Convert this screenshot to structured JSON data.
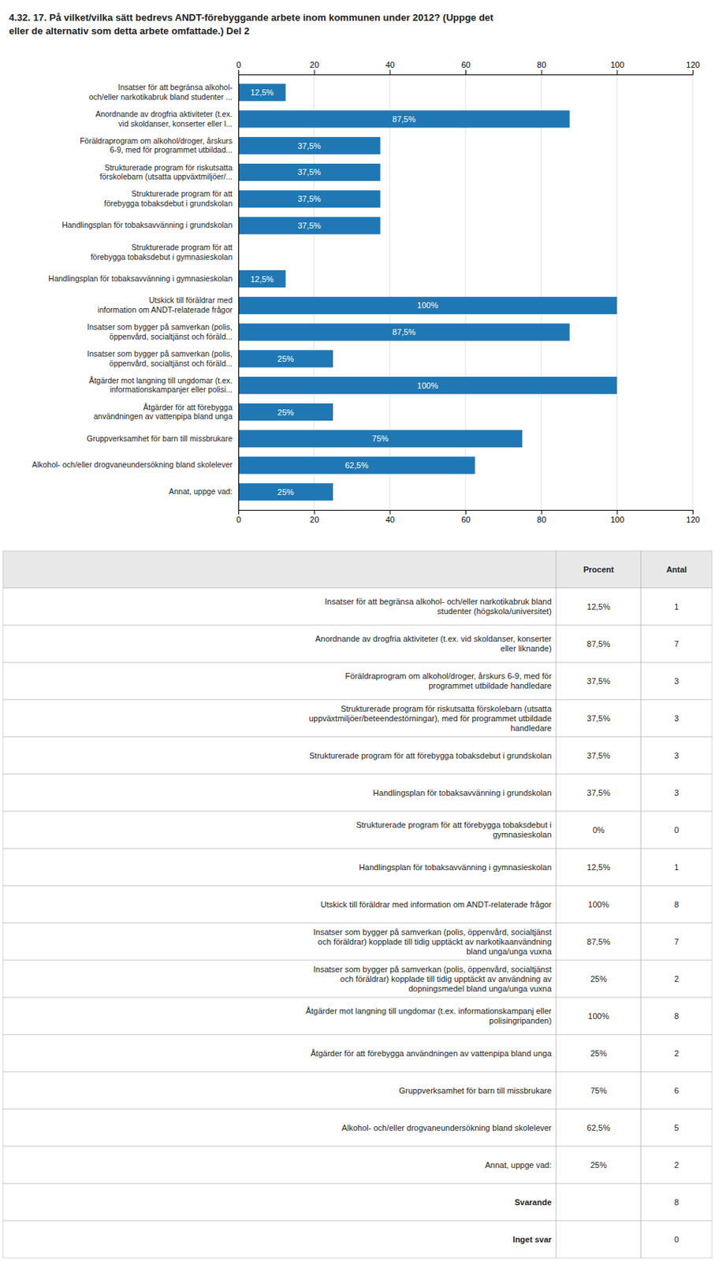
{
  "chart_data": {
    "type": "bar",
    "orientation": "horizontal",
    "title": "4.32. 17. På vilket/vilka sätt bedrevs ANDT-förebyggande arbete inom kommunen under 2012? (Uppge det\neller de alternativ som detta arbete omfattade.) Del 2",
    "categories": [
      "Insatser för att begränsa alkohol-\noch/eller narkotikabruk bland studenter ...",
      "Anordnande av drogfria aktiviteter (t.ex.\nvid skoldanser, konserter eller l...",
      "Föräldraprogram om alkohol/droger, årskurs\n6-9, med för programmet utbildad...",
      "Strukturerade program för riskutsatta\nförskolebarn (utsatta uppväxtmiljöer/...",
      "Strukturerade program för att\nförebygga tobaksdebut i grundskolan",
      "Handlingsplan för tobaksavvänning i grundskolan",
      "Strukturerade program för att\nförebygga tobaksdebut i gymnasieskolan",
      "Handlingsplan för tobaksavvänning i gymnasieskolan",
      "Utskick till föräldrar med\ninformation om ANDT-relaterade frågor",
      "Insatser som bygger på samverkan (polis,\nöppenvård, socialtjänst och föräld...",
      "Insatser som bygger på samverkan (polis,\nöppenvård, socialtjänst och föräld...",
      "Åtgärder mot langning till ungdomar (t.ex.\ninformationskampanjer eller polisi...",
      "Åtgärder för att förebygga\nanvändningen av vattenpipa bland unga",
      "Gruppverksamhet för barn till missbrukare",
      "Alkohol- och/eller drogvaneundersökning bland skolelever",
      "Annat, uppge vad:"
    ],
    "values": [
      12.5,
      87.5,
      37.5,
      37.5,
      37.5,
      37.5,
      0.0,
      12.5,
      100.0,
      87.5,
      25.0,
      100.0,
      25.0,
      75.0,
      62.5,
      25.0
    ],
    "value_labels": [
      "12,5%",
      "87,5%",
      "37,5%",
      "37,5%",
      "37,5%",
      "37,5%",
      null,
      "12,5%",
      "100%",
      "87,5%",
      "25%",
      "100%",
      "25%",
      "75%",
      "62,5%",
      "25%"
    ],
    "data_labels": true,
    "xlim": [
      0,
      120
    ],
    "xticks": [
      0,
      20,
      40,
      60,
      80,
      100,
      120
    ],
    "grid": true
  },
  "table": {
    "columns": [
      null,
      "Procent",
      "Antal"
    ],
    "rows": [
      [
        "Insatser för att begränsa alkohol- och/eller narkotikabruk bland\nstudenter (högskola/universitet)",
        "12,5%",
        "1"
      ],
      [
        "Anordnande av drogfria aktiviteter (t.ex. vid skoldanser, konserter\neller liknande)",
        "87,5%",
        "7"
      ],
      [
        "Föräldraprogram om alkohol/droger, årskurs 6-9, med för\nprogrammet utbildade handledare",
        "37,5%",
        "3"
      ],
      [
        "Strukturerade program för riskutsatta förskolebarn (utsatta\nuppväxtmiljöer/beteendestörningar), med för programmet utbildade\nhandledare",
        "37,5%",
        "3"
      ],
      [
        "Strukturerade program för att förebygga tobaksdebut i grundskolan",
        "37,5%",
        "3"
      ],
      [
        "Handlingsplan för tobaksavvänning i grundskolan",
        "37,5%",
        "3"
      ],
      [
        "Strukturerade program för att förebygga tobaksdebut i\ngymnasies­kolan",
        "0%",
        "0"
      ],
      [
        "Handlingsplan för tobaksavvänning i gymnasieskolan",
        "12,5%",
        "1"
      ],
      [
        "Utskick till föräldrar med information om ANDT-relaterade frågor",
        "100%",
        "8"
      ],
      [
        "Insatser som bygger på samverkan (polis, öppenvård, socialtjänst\noch föräldrar) kopplade till tidig upptäckt av narkotikaanvändning\nbland unga/unga vuxna",
        "87,5%",
        "7"
      ],
      [
        "Insatser som bygger på samverkan (polis, öppenvård, socialtjänst\noch föräldrar) kopplade till tidig upptäckt av användning av\ndopningsmedel bland unga/unga vuxna",
        "25%",
        "2"
      ],
      [
        "Åtgärder mot langning till ungdomar (t.ex. informationskampanj eller\npolisingripanden)",
        "100%",
        "8"
      ],
      [
        "Åtgärder för att förebygga användningen av vattenpipa bland unga",
        "25%",
        "2"
      ],
      [
        "Gruppverksamhet för barn till missbrukare",
        "75%",
        "6"
      ],
      [
        "Alkohol- och/eller drogvaneundersökning bland skolelever",
        "62,5%",
        "5"
      ],
      [
        "Annat, uppge vad:",
        "25%",
        "2"
      ],
      [
        "Svarande",
        null,
        "8"
      ],
      [
        "Inget svar",
        null,
        "0"
      ]
    ]
  }
}
